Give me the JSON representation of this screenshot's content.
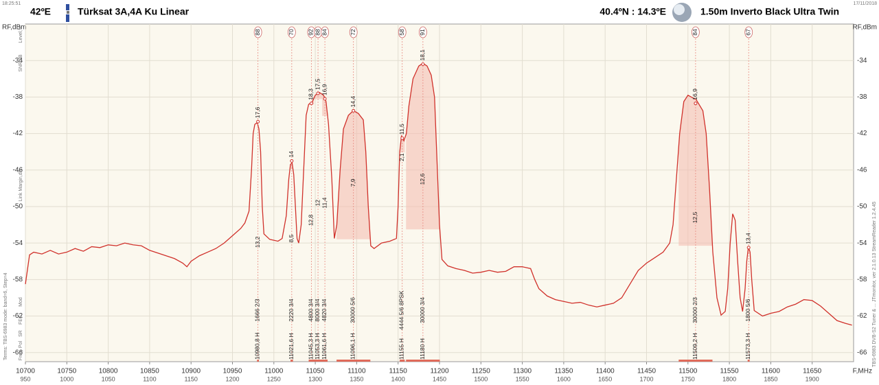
{
  "header": {
    "orbit": "42ºE",
    "satellite": "Türksat 3A,4A Ku Linear",
    "location": "40.4ºN : 14.3ºE",
    "antenna": "1.50m  Inverto Black Ultra Twin",
    "time": "18:25:51",
    "date": "17/11/2018"
  },
  "row_labels": {
    "level": "Level,%",
    "snr": "SNR,dB",
    "margin": "Link Margin,dB",
    "mod": "Mod",
    "fec": "FEC",
    "sr": "SR",
    "pol": "Pol",
    "freq": "Freq"
  },
  "footer_left": "Terms: TBS-6983 mode: band=6, Step=4",
  "footer_right": "TBS-6983 DVB-S2 Tuner & ...  JTmonitor, ver 2.1.0.13  StreamReader 1.2.4.45",
  "chart_data": {
    "type": "line",
    "ylabel": "RF,dBm",
    "xlabel": "F,MHz",
    "color": "#d0302a",
    "grid": true,
    "xlim": [
      10700,
      11700
    ],
    "ylim": [
      -67,
      -30
    ],
    "x2lim": [
      950,
      1950
    ],
    "xticks": [
      10700,
      10750,
      10800,
      10850,
      10900,
      10950,
      11000,
      11050,
      11100,
      11150,
      11200,
      11250,
      11300,
      11350,
      11400,
      11450,
      11500,
      11550,
      11600,
      11650
    ],
    "x2ticks": [
      950,
      1000,
      1050,
      1100,
      1150,
      1200,
      1250,
      1300,
      1350,
      1400,
      1450,
      1500,
      1550,
      1600,
      1650,
      1700,
      1750,
      1800,
      1850,
      1900
    ],
    "yticks": [
      -66,
      -62,
      -58,
      -54,
      -50,
      -46,
      -42,
      -38,
      -34
    ],
    "x": [
      10700,
      10705,
      10710,
      10720,
      10730,
      10740,
      10750,
      10760,
      10770,
      10780,
      10790,
      10800,
      10810,
      10820,
      10830,
      10840,
      10850,
      10860,
      10870,
      10880,
      10890,
      10895,
      10900,
      10910,
      10920,
      10930,
      10940,
      10950,
      10960,
      10965,
      10970,
      10973,
      10975,
      10977,
      10980,
      10982,
      10984,
      10986,
      10988,
      10995,
      11005,
      11010,
      11015,
      11018,
      11020,
      11022,
      11024,
      11026,
      11028,
      11030,
      11033,
      11036,
      11039,
      11042,
      11046,
      11050,
      11055,
      11060,
      11063,
      11066,
      11070,
      11073,
      11076,
      11080,
      11084,
      11090,
      11096,
      11102,
      11108,
      11111,
      11114,
      11117,
      11121,
      11130,
      11140,
      11148,
      11150,
      11152,
      11154,
      11157,
      11160,
      11163,
      11168,
      11175,
      11180,
      11185,
      11190,
      11194,
      11197,
      11200,
      11203,
      11210,
      11220,
      11230,
      11240,
      11250,
      11260,
      11270,
      11280,
      11290,
      11300,
      11310,
      11315,
      11320,
      11330,
      11340,
      11350,
      11360,
      11370,
      11380,
      11390,
      11400,
      11410,
      11420,
      11430,
      11440,
      11450,
      11460,
      11470,
      11478,
      11482,
      11486,
      11490,
      11495,
      11500,
      11510,
      11518,
      11522,
      11526,
      11530,
      11535,
      11540,
      11545,
      11548,
      11551,
      11554,
      11557,
      11560,
      11563,
      11566,
      11569,
      11571,
      11573,
      11575,
      11577,
      11580,
      11590,
      11600,
      11610,
      11620,
      11630,
      11640,
      11650,
      11660,
      11670,
      11680,
      11690,
      11698
    ],
    "values": [
      -58.5,
      -55.3,
      -55.0,
      -55.2,
      -54.8,
      -55.2,
      -55.0,
      -54.6,
      -54.9,
      -54.4,
      -54.5,
      -54.2,
      -54.3,
      -54.0,
      -54.2,
      -54.3,
      -54.8,
      -55.1,
      -55.4,
      -55.7,
      -56.2,
      -56.6,
      -56.0,
      -55.4,
      -55.0,
      -54.6,
      -54.0,
      -53.2,
      -52.4,
      -51.8,
      -50.5,
      -46,
      -42.0,
      -41.0,
      -40.8,
      -41.5,
      -44,
      -50,
      -53,
      -53.6,
      -53.8,
      -53.5,
      -51,
      -47,
      -45.4,
      -45.2,
      -46.5,
      -50,
      -53.5,
      -54.0,
      -52,
      -46,
      -40,
      -38.8,
      -38.6,
      -37.8,
      -37.5,
      -37.8,
      -38.5,
      -41,
      -47,
      -53.5,
      -52,
      -46,
      -41.5,
      -40.0,
      -39.5,
      -39.8,
      -40.5,
      -44,
      -50,
      -54.3,
      -54.6,
      -54.0,
      -53.8,
      -53.5,
      -50,
      -44,
      -42.3,
      -42.8,
      -42.0,
      -39,
      -36.0,
      -34.6,
      -34.3,
      -34.6,
      -35.6,
      -38,
      -45,
      -52,
      -55.8,
      -56.5,
      -56.8,
      -57.0,
      -57.3,
      -57.2,
      -57.0,
      -57.2,
      -57.1,
      -56.6,
      -56.6,
      -56.8,
      -58.0,
      -59.0,
      -59.8,
      -60.2,
      -60.4,
      -60.6,
      -60.5,
      -60.8,
      -61.0,
      -60.8,
      -60.6,
      -60.0,
      -58.5,
      -57.0,
      -56.2,
      -55.6,
      -55.0,
      -54.0,
      -52,
      -47,
      -42,
      -38.5,
      -37.8,
      -38.3,
      -39.5,
      -42,
      -48,
      -55,
      -60,
      -61.9,
      -61.5,
      -59,
      -54,
      -50.8,
      -51.5,
      -56,
      -60,
      -61.5,
      -59,
      -56,
      -54.4,
      -55,
      -58,
      -61.4,
      -62.0,
      -61.7,
      -61.5,
      -61.0,
      -60.7,
      -60.2,
      -60.3,
      -60.9,
      -61.7,
      -62.5,
      -62.8,
      -63.0
    ],
    "transponders": [
      {
        "freq": 10980.8,
        "freq_label": "10980,8",
        "pol": "H",
        "sr": 1666,
        "fec": "2/3",
        "level": 88,
        "snr": "17,6",
        "margin": 13.2,
        "margin_label": "13,2",
        "peak": -40.7
      },
      {
        "freq": 11021.6,
        "freq_label": "11021,6",
        "pol": "H",
        "sr": 2220,
        "fec": "3/4",
        "level": 70,
        "snr": "14",
        "margin": 8.5,
        "margin_label": "8,5",
        "peak": -45.0
      },
      {
        "freq": 11045.3,
        "freq_label": "11045,3",
        "pol": "H",
        "sr": 4800,
        "fec": "3/4",
        "level": 92,
        "snr": "18,3",
        "margin": 12.8,
        "margin_label": "12,8",
        "peak": -38.7
      },
      {
        "freq": 11053.3,
        "freq_label": "11053,3",
        "pol": "H",
        "sr": 8000,
        "fec": "3/4",
        "level": 88,
        "snr": "17,5",
        "margin": 12,
        "margin_label": "12",
        "peak": -37.6
      },
      {
        "freq": 11061.6,
        "freq_label": "11061,6",
        "pol": "H",
        "sr": 4820,
        "fec": "3/4",
        "level": 84,
        "snr": "16,9",
        "margin": 11.4,
        "margin_label": "11,4",
        "peak": -38.2
      },
      {
        "freq": 11096.1,
        "freq_label": "11096,1",
        "pol": "H",
        "sr": 30000,
        "fec": "5/6",
        "level": 72,
        "snr": "14,4",
        "margin": 7.9,
        "margin_label": "7,9",
        "peak": -39.5
      },
      {
        "freq": 11155,
        "freq_label": "11155",
        "pol": "H",
        "sr": 4444,
        "fec": "5/6  8PSK",
        "level": 58,
        "snr": "11,5",
        "margin": 2.1,
        "margin_label": "2,1",
        "peak": -42.5
      },
      {
        "freq": 11180,
        "freq_label": "11180",
        "pol": "H",
        "sr": 30000,
        "fec": "3/4",
        "level": 91,
        "snr": "18,1",
        "margin": 12.6,
        "margin_label": "12,6",
        "peak": -34.4
      },
      {
        "freq": 11509.2,
        "freq_label": "11509,2",
        "pol": "H",
        "sr": 30000,
        "fec": "2/3",
        "level": 84,
        "snr": "16,9",
        "margin": 12.5,
        "margin_label": "12,5",
        "peak": -38.7
      },
      {
        "freq": 11573.3,
        "freq_label": "11573,3",
        "pol": "H",
        "sr": 1800,
        "fec": "5/6",
        "level": 67,
        "snr": "13,4",
        "peak": -54.5
      }
    ]
  }
}
